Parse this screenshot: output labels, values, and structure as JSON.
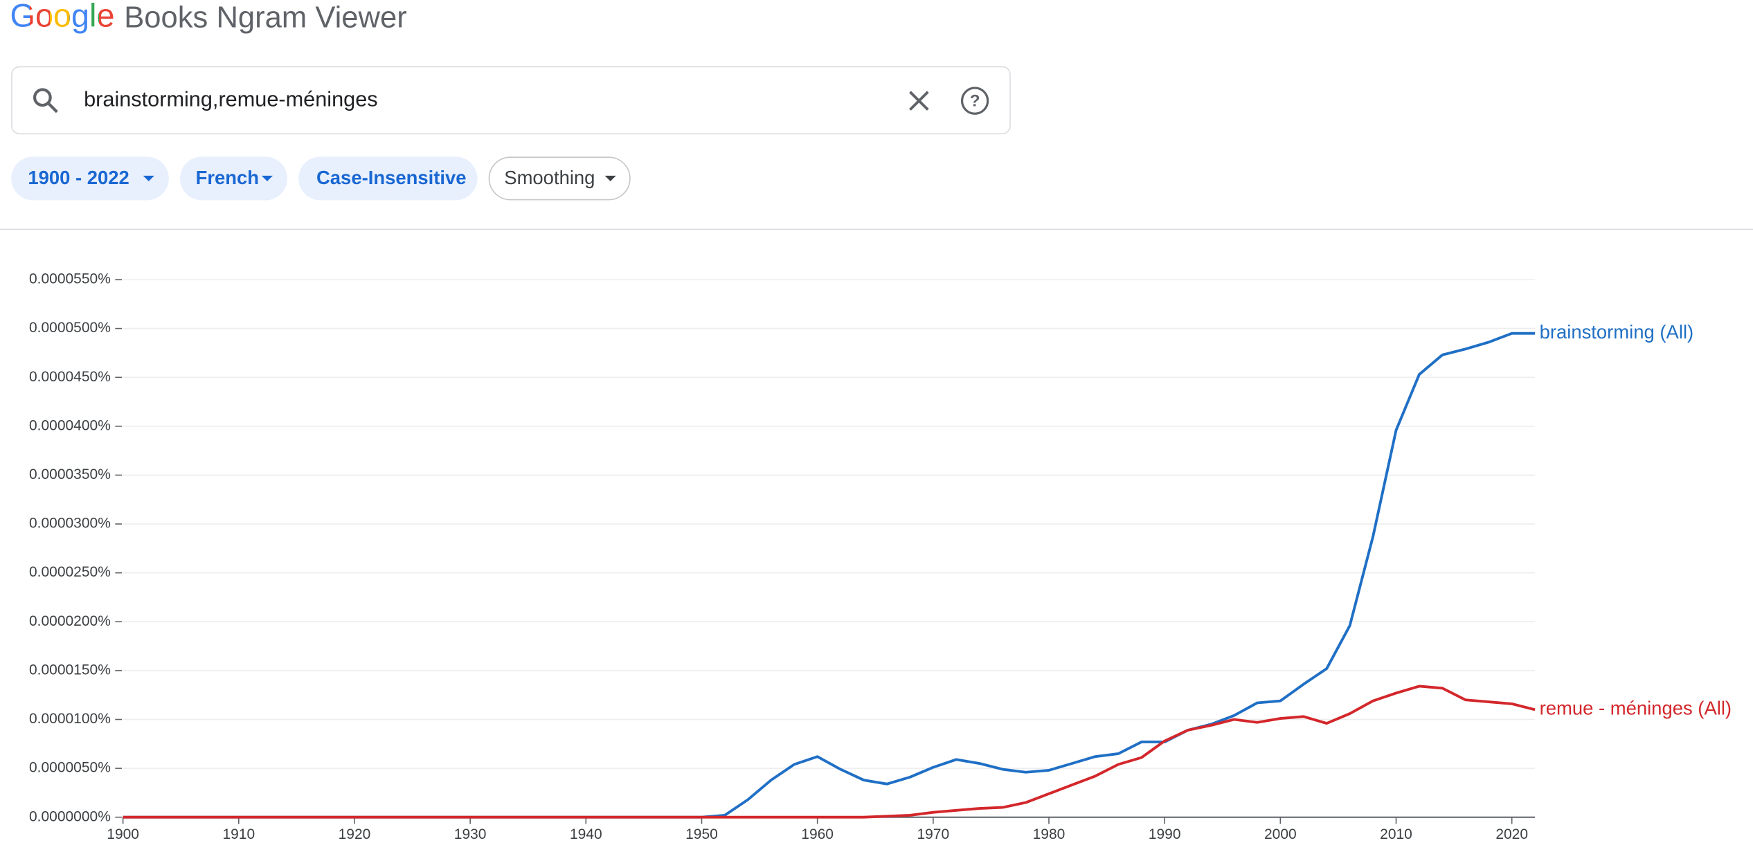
{
  "header": {
    "logo": "Google",
    "title": "Books Ngram Viewer"
  },
  "search": {
    "query": "brainstorming,remue-méninges"
  },
  "chips": [
    "1900 - 2022",
    "French",
    "Case-Insensitive",
    "Smoothing"
  ],
  "chart_data": {
    "type": "line",
    "x": [
      1900,
      1950,
      1952,
      1954,
      1956,
      1958,
      1960,
      1962,
      1964,
      1966,
      1968,
      1970,
      1972,
      1974,
      1976,
      1978,
      1980,
      1982,
      1984,
      1986,
      1988,
      1990,
      1992,
      1994,
      1996,
      1998,
      2000,
      2002,
      2004,
      2006,
      2008,
      2010,
      2012,
      2014,
      2016,
      2018,
      2020,
      2022
    ],
    "series": [
      {
        "name": "brainstorming (All)",
        "color": "#1f6fc5",
        "values": [
          0,
          0,
          2e-07,
          1.8e-06,
          3.8e-06,
          5.4e-06,
          6.2e-06,
          4.9e-06,
          3.8e-06,
          3.4e-06,
          4.1e-06,
          5.1e-06,
          5.9e-06,
          5.5e-06,
          4.9e-06,
          4.6e-06,
          4.8e-06,
          5.5e-06,
          6.2e-06,
          6.5e-06,
          7.7e-06,
          7.7e-06,
          8.9e-06,
          9.5e-06,
          1.04e-05,
          1.17e-05,
          1.19e-05,
          1.36e-05,
          1.52e-05,
          1.96e-05,
          2.87e-05,
          3.96e-05,
          4.53e-05,
          4.73e-05,
          4.79e-05,
          4.86e-05,
          4.95e-05,
          4.95e-05
        ]
      },
      {
        "name": "remue - méninges (All)",
        "color": "#d3272b",
        "values": [
          0,
          0,
          0,
          0,
          0,
          0,
          0,
          0,
          0,
          1e-07,
          2e-07,
          5e-07,
          7e-07,
          9e-07,
          1e-06,
          1.5e-06,
          2.4e-06,
          3.3e-06,
          4.2e-06,
          5.4e-06,
          6.1e-06,
          7.8e-06,
          8.9e-06,
          9.4e-06,
          1e-05,
          9.7e-06,
          1.01e-05,
          1.03e-05,
          9.6e-06,
          1.06e-05,
          1.19e-05,
          1.27e-05,
          1.34e-05,
          1.32e-05,
          1.2e-05,
          1.18e-05,
          1.16e-05,
          1.1e-05
        ]
      }
    ],
    "xlim": [
      1900,
      2022
    ],
    "xticks": [
      1900,
      1910,
      1920,
      1930,
      1940,
      1950,
      1960,
      1970,
      1980,
      1990,
      2000,
      2010,
      2020
    ],
    "ylim": [
      0,
      5.5e-05
    ],
    "yticks": [
      {
        "value": 0,
        "label": "0.0000000%"
      },
      {
        "value": 5e-06,
        "label": "0.0000050%"
      },
      {
        "value": 1e-05,
        "label": "0.0000100%"
      },
      {
        "value": 1.5e-05,
        "label": "0.0000150%"
      },
      {
        "value": 2e-05,
        "label": "0.0000200%"
      },
      {
        "value": 2.5e-05,
        "label": "0.0000250%"
      },
      {
        "value": 3e-05,
        "label": "0.0000300%"
      },
      {
        "value": 3.5e-05,
        "label": "0.0000350%"
      },
      {
        "value": 4e-05,
        "label": "0.0000400%"
      },
      {
        "value": 4.5e-05,
        "label": "0.0000450%"
      },
      {
        "value": 5e-05,
        "label": "0.0000500%"
      },
      {
        "value": 5.5e-05,
        "label": "0.0000550%"
      }
    ],
    "grid": true
  }
}
